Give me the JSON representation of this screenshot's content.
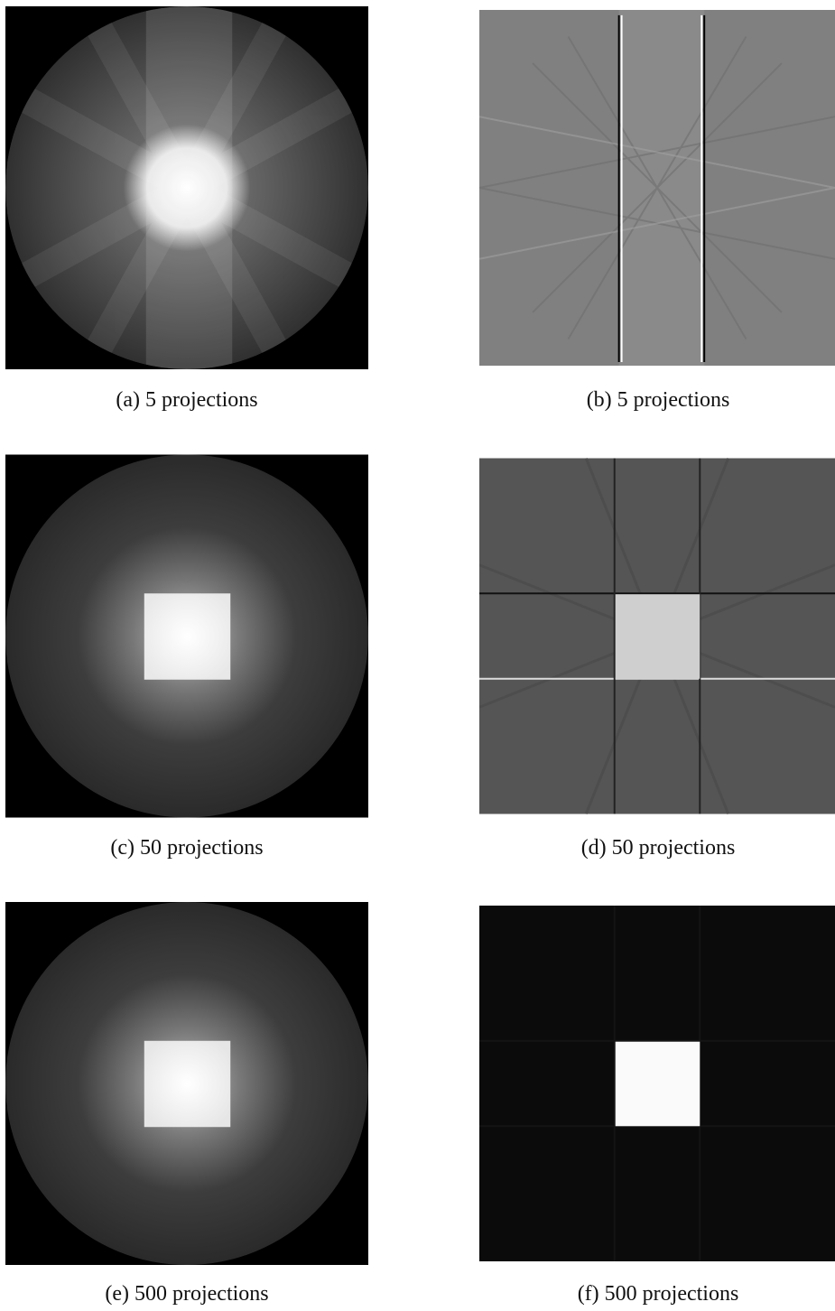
{
  "figure": {
    "subfigures": [
      {
        "caption": "(a) 5 projections"
      },
      {
        "caption": "(b) 5 projections"
      },
      {
        "caption": "(c) 50 projections"
      },
      {
        "caption": "(d) 50 projections"
      },
      {
        "caption": "(e) 500 projections"
      },
      {
        "caption": "(f) 500 projections"
      }
    ]
  }
}
